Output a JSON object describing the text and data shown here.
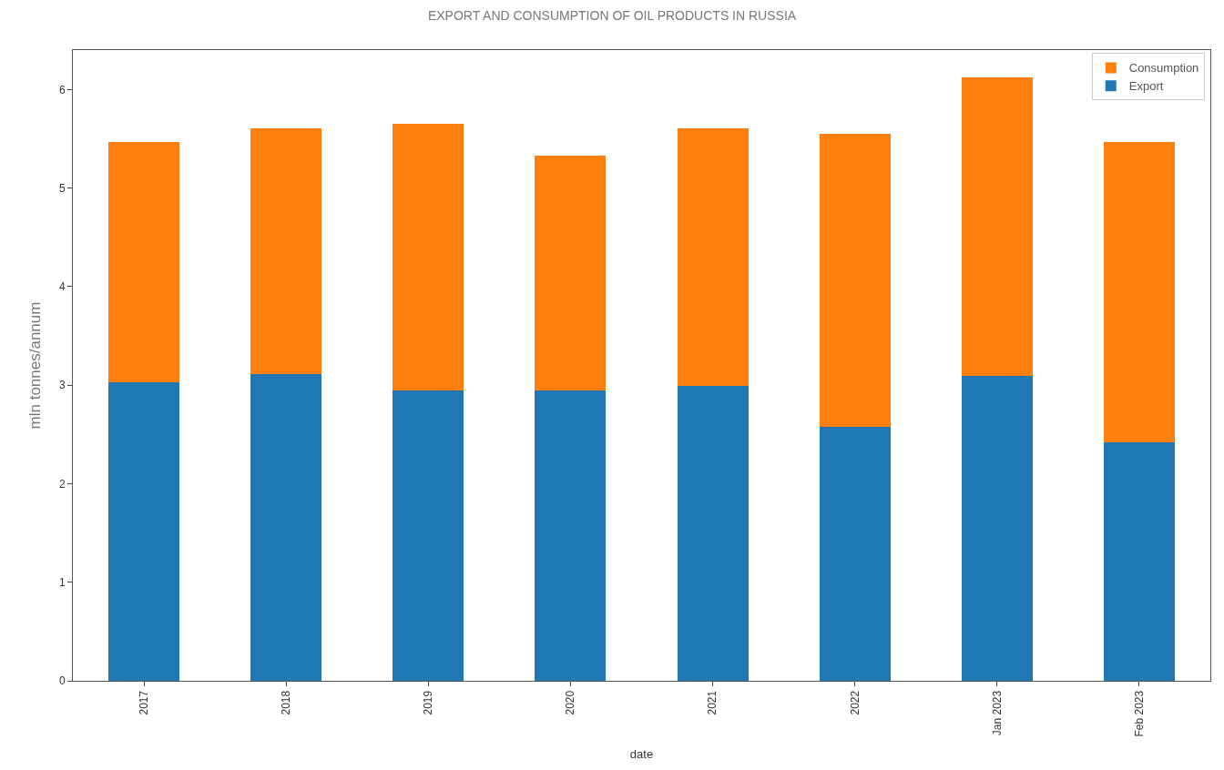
{
  "chart_data": {
    "type": "bar",
    "title": "EXPORT AND CONSUMPTION OF OIL PRODUCTS IN RUSSIA",
    "xlabel": "date",
    "ylabel": "mln tonnes/annum",
    "categories": [
      "2017",
      "2018",
      "2019",
      "2020",
      "2021",
      "2022",
      "Jan 2023",
      "Feb 2023"
    ],
    "stacked": true,
    "ylim": [
      0,
      6.4
    ],
    "yticks": [
      0,
      1,
      2,
      3,
      4,
      5,
      6
    ],
    "grid": false,
    "legend": "top right",
    "series": [
      {
        "name": "Export",
        "color": "#1f77b4",
        "values": [
          3.03,
          3.11,
          2.95,
          2.95,
          2.99,
          2.58,
          3.09,
          2.42
        ]
      },
      {
        "name": "Consumption",
        "color": "#ff7f0e",
        "values": [
          2.44,
          2.5,
          2.7,
          2.38,
          2.62,
          2.97,
          3.03,
          3.05
        ]
      }
    ]
  }
}
